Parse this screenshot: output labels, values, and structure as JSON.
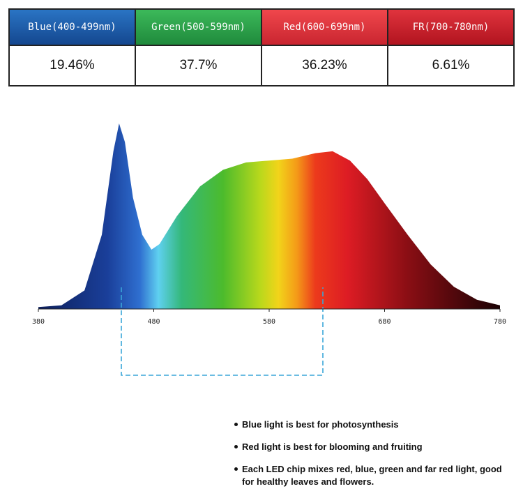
{
  "table": {
    "headers": [
      "Blue(400-499nm)",
      "Green(500-599nm)",
      "Red(600-699nm)",
      "FR(700-780nm)"
    ],
    "values": [
      "19.46%",
      "37.7%",
      "36.23%",
      "6.61%"
    ]
  },
  "chart_data": {
    "type": "area",
    "x": [
      380,
      400,
      420,
      435,
      445,
      450,
      455,
      462,
      470,
      478,
      485,
      500,
      520,
      540,
      560,
      580,
      600,
      620,
      635,
      650,
      665,
      680,
      700,
      720,
      740,
      760,
      780
    ],
    "values": [
      1,
      2,
      10,
      40,
      85,
      100,
      90,
      60,
      40,
      32,
      35,
      50,
      66,
      75,
      79,
      80,
      81,
      84,
      85,
      80,
      70,
      57,
      40,
      24,
      12,
      5,
      2
    ],
    "xlim": [
      380,
      780
    ],
    "ylim": [
      0,
      100
    ],
    "xticks": [
      380,
      480,
      580,
      680,
      780
    ]
  },
  "notes": [
    "Blue light is best for photosynthesis",
    "Red light is best for blooming and fruiting",
    "Each LED chip mixes red, blue, green and far red light, good for healthy leaves and flowers."
  ]
}
